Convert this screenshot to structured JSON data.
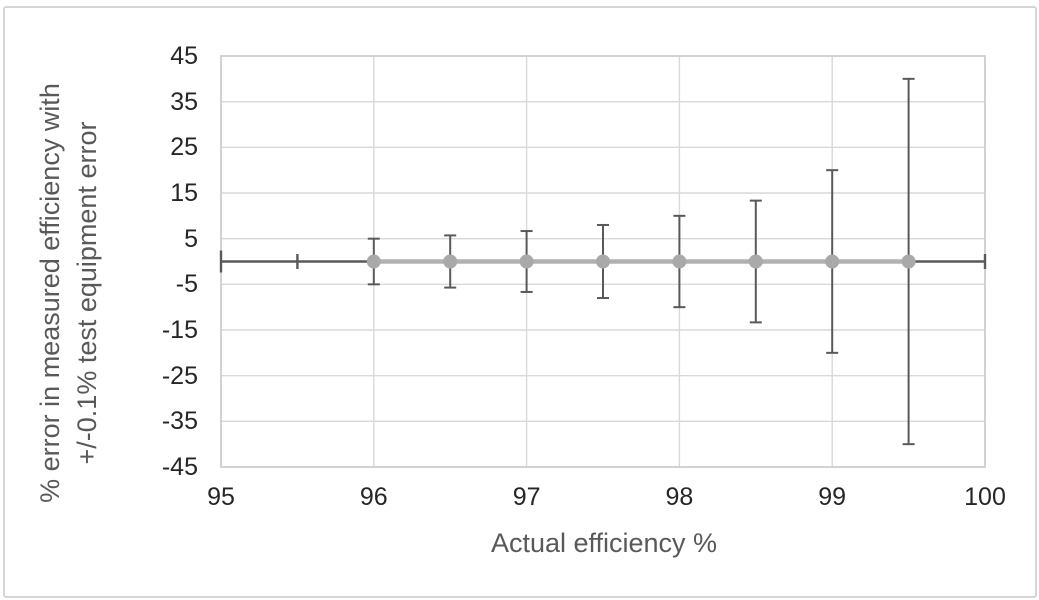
{
  "figure": {
    "background": "#ffffff",
    "border_color": "#d6d6d6"
  },
  "chart_data": {
    "type": "scatter",
    "title": "",
    "xlabel": "Actual efficiency %",
    "ylabel_lines": [
      "% error in measured efficiency with",
      "+/-0.1% test equipment error"
    ],
    "xlim": [
      95,
      100
    ],
    "ylim": [
      -45,
      45
    ],
    "xticks": [
      95,
      96,
      97,
      98,
      99,
      100
    ],
    "yticks": [
      45,
      35,
      25,
      15,
      5,
      -5,
      -15,
      -25,
      -35,
      -45
    ],
    "grid": true,
    "legend": "none",
    "series": [
      {
        "name": "% error in measured efficiency",
        "x": [
          96,
          96.5,
          97,
          97.5,
          98,
          98.5,
          99,
          99.5
        ],
        "y": [
          0,
          0,
          0,
          0,
          0,
          0,
          0,
          0
        ],
        "y_error": [
          5,
          5.71,
          6.67,
          8,
          10,
          13.33,
          20,
          40
        ]
      }
    ],
    "x_error_line": {
      "y": 0,
      "from": 95,
      "to": 100,
      "caps": [
        {
          "x": 95,
          "tall": true
        },
        {
          "x": 95.5,
          "tall": false
        },
        {
          "x": 100,
          "tall": false
        }
      ]
    },
    "colors": {
      "marker": "#a9a9a9",
      "series_line": "#b1b1b1",
      "error_bar": "#595959",
      "gridline": "#d9d9d9",
      "axis_line": "#cbcbcb",
      "tick_label": "#262626",
      "axis_title": "#595959"
    }
  }
}
